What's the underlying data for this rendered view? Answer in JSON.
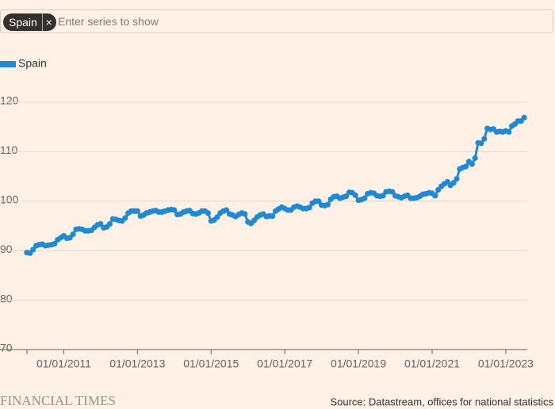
{
  "search": {
    "chip": "Spain",
    "placeholder": "Enter series to show"
  },
  "chart_data": {
    "type": "line",
    "x": [
      "01/01/2010",
      "01/02/2010",
      "01/03/2010",
      "01/04/2010",
      "01/05/2010",
      "01/06/2010",
      "01/07/2010",
      "01/08/2010",
      "01/09/2010",
      "01/10/2010",
      "01/11/2010",
      "01/12/2010",
      "01/01/2011",
      "01/02/2011",
      "01/03/2011",
      "01/04/2011",
      "01/05/2011",
      "01/06/2011",
      "01/07/2011",
      "01/08/2011",
      "01/09/2011",
      "01/10/2011",
      "01/11/2011",
      "01/12/2011",
      "01/01/2012",
      "01/02/2012",
      "01/03/2012",
      "01/04/2012",
      "01/05/2012",
      "01/06/2012",
      "01/07/2012",
      "01/08/2012",
      "01/09/2012",
      "01/10/2012",
      "01/11/2012",
      "01/12/2012",
      "01/01/2013",
      "01/02/2013",
      "01/03/2013",
      "01/04/2013",
      "01/05/2013",
      "01/06/2013",
      "01/07/2013",
      "01/08/2013",
      "01/09/2013",
      "01/10/2013",
      "01/11/2013",
      "01/12/2013",
      "01/01/2014",
      "01/02/2014",
      "01/03/2014",
      "01/04/2014",
      "01/05/2014",
      "01/06/2014",
      "01/07/2014",
      "01/08/2014",
      "01/09/2014",
      "01/10/2014",
      "01/11/2014",
      "01/12/2014",
      "01/01/2015",
      "01/02/2015",
      "01/03/2015",
      "01/04/2015",
      "01/05/2015",
      "01/06/2015",
      "01/07/2015",
      "01/08/2015",
      "01/09/2015",
      "01/10/2015",
      "01/11/2015",
      "01/12/2015",
      "01/01/2016",
      "01/02/2016",
      "01/03/2016",
      "01/04/2016",
      "01/05/2016",
      "01/06/2016",
      "01/07/2016",
      "01/08/2016",
      "01/09/2016",
      "01/10/2016",
      "01/11/2016",
      "01/12/2016",
      "01/01/2017",
      "01/02/2017",
      "01/03/2017",
      "01/04/2017",
      "01/05/2017",
      "01/06/2017",
      "01/07/2017",
      "01/08/2017",
      "01/09/2017",
      "01/10/2017",
      "01/11/2017",
      "01/12/2017",
      "01/01/2018",
      "01/02/2018",
      "01/03/2018",
      "01/04/2018",
      "01/05/2018",
      "01/06/2018",
      "01/07/2018",
      "01/08/2018",
      "01/09/2018",
      "01/10/2018",
      "01/11/2018",
      "01/12/2018",
      "01/01/2019",
      "01/02/2019",
      "01/03/2019",
      "01/04/2019",
      "01/05/2019",
      "01/06/2019",
      "01/07/2019",
      "01/08/2019",
      "01/09/2019",
      "01/10/2019",
      "01/11/2019",
      "01/12/2019",
      "01/01/2020",
      "01/02/2020",
      "01/03/2020",
      "01/04/2020",
      "01/05/2020",
      "01/06/2020",
      "01/07/2020",
      "01/08/2020",
      "01/09/2020",
      "01/10/2020",
      "01/11/2020",
      "01/12/2020",
      "01/01/2021",
      "01/02/2021",
      "01/03/2021",
      "01/04/2021",
      "01/05/2021",
      "01/06/2021",
      "01/07/2021",
      "01/08/2021",
      "01/09/2021",
      "01/10/2021",
      "01/11/2021",
      "01/12/2021",
      "01/01/2022",
      "01/02/2022",
      "01/03/2022",
      "01/04/2022",
      "01/05/2022",
      "01/06/2022",
      "01/07/2022",
      "01/08/2022",
      "01/09/2022",
      "01/10/2022",
      "01/11/2022",
      "01/12/2022",
      "01/01/2023",
      "01/02/2023",
      "01/03/2023",
      "01/04/2023",
      "01/05/2023",
      "01/06/2023",
      "01/07/2023"
    ],
    "series": [
      {
        "name": "Spain",
        "color": "#1f8ad3",
        "values": [
          89.6,
          89.5,
          90.2,
          91.0,
          91.2,
          91.3,
          91.0,
          91.1,
          91.2,
          91.4,
          92.2,
          92.6,
          93.0,
          92.5,
          92.6,
          93.3,
          94.3,
          94.4,
          94.3,
          94.0,
          94.0,
          94.1,
          94.7,
          95.2,
          95.4,
          94.6,
          94.8,
          95.4,
          96.4,
          96.3,
          96.1,
          96.0,
          96.6,
          97.6,
          98.0,
          98.0,
          98.0,
          97.0,
          97.2,
          97.6,
          97.8,
          98.0,
          98.1,
          97.8,
          97.8,
          98.0,
          98.2,
          98.3,
          98.2,
          97.3,
          97.4,
          97.8,
          98.0,
          98.1,
          97.5,
          97.4,
          97.6,
          98.0,
          98.0,
          97.6,
          96.0,
          96.2,
          96.8,
          97.6,
          98.0,
          98.2,
          97.4,
          97.2,
          96.9,
          97.3,
          97.6,
          97.4,
          95.8,
          95.5,
          96.1,
          96.8,
          97.2,
          97.4,
          96.9,
          97.0,
          97.0,
          98.0,
          98.4,
          98.8,
          98.5,
          98.2,
          98.2,
          98.8,
          99.0,
          98.8,
          98.5,
          98.5,
          98.7,
          99.6,
          100.0,
          100.0,
          99.2,
          99.1,
          99.3,
          100.4,
          100.9,
          101.0,
          100.6,
          100.8,
          101.0,
          101.8,
          101.7,
          101.2,
          100.2,
          100.3,
          100.6,
          101.5,
          101.7,
          101.6,
          101.1,
          101.0,
          101.1,
          101.9,
          102.0,
          101.9,
          101.1,
          100.9,
          100.7,
          101.0,
          101.2,
          100.6,
          100.6,
          100.7,
          101.0,
          101.4,
          101.5,
          101.7,
          101.6,
          101.1,
          102.3,
          103.0,
          103.5,
          103.9,
          103.2,
          103.7,
          104.5,
          106.5,
          106.8,
          107.0,
          108.0,
          107.5,
          108.7,
          111.8,
          111.7,
          112.6,
          114.7,
          114.5,
          114.6,
          114.0,
          114.1,
          114.0,
          114.2,
          114.0,
          115.2,
          115.6,
          116.2,
          116.2,
          116.9
        ]
      }
    ],
    "xlim": [
      "01/01/2010",
      "01/08/2023"
    ],
    "xticks": [
      "01/01/2011",
      "01/01/2013",
      "01/01/2015",
      "01/01/2017",
      "01/01/2019",
      "01/01/2021",
      "01/01/2023"
    ],
    "ylim": [
      70,
      120
    ],
    "yticks": [
      70,
      80,
      90,
      100,
      110,
      120
    ],
    "grid": true,
    "legend": "top-left",
    "source": "Source: Datastream, offices for national statistics",
    "logo": "FINANCIAL TIMES"
  }
}
